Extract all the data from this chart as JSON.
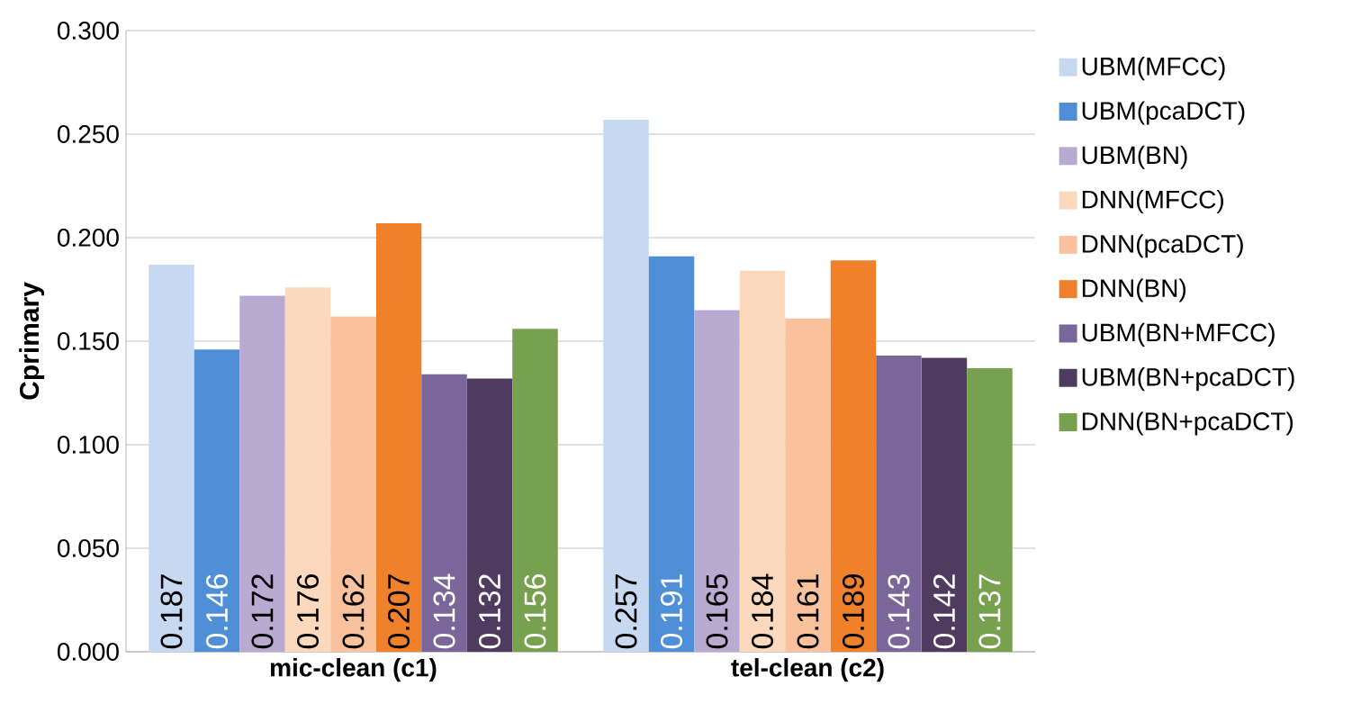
{
  "chart_data": {
    "type": "bar",
    "ylabel": "Cprimary",
    "categories": [
      "mic-clean (c1)",
      "tel-clean (c2)"
    ],
    "series": [
      {
        "name": "UBM(MFCC)",
        "color": "#c6d9f0",
        "values": [
          0.187,
          0.257
        ]
      },
      {
        "name": "UBM(pcaDCT)",
        "color": "#4f8fd8",
        "values": [
          0.146,
          0.191
        ]
      },
      {
        "name": "UBM(BN)",
        "color": "#b9aad2",
        "values": [
          0.172,
          0.165
        ]
      },
      {
        "name": "DNN(MFCC)",
        "color": "#fcd8bc",
        "values": [
          0.176,
          0.184
        ]
      },
      {
        "name": "DNN(pcaDCT)",
        "color": "#f9c19c",
        "values": [
          0.162,
          0.161
        ]
      },
      {
        "name": "DNN(BN)",
        "color": "#f0802a",
        "values": [
          0.207,
          0.189
        ]
      },
      {
        "name": "UBM(BN+MFCC)",
        "color": "#7b6699",
        "values": [
          0.134,
          0.143
        ]
      },
      {
        "name": "UBM(BN+pcaDCT)",
        "color": "#4f3b5f",
        "values": [
          0.132,
          0.142
        ]
      },
      {
        "name": "DNN(BN+pcaDCT)",
        "color": "#78a14f",
        "values": [
          0.156,
          0.137
        ]
      }
    ],
    "ylim": [
      0,
      0.3
    ],
    "yticks": [
      {
        "value": 0,
        "label": "0.000"
      },
      {
        "value": 0.05,
        "label": "0.050"
      },
      {
        "value": 0.1,
        "label": "0.100"
      },
      {
        "value": 0.15,
        "label": "0.150"
      },
      {
        "value": 0.2,
        "label": "0.200"
      },
      {
        "value": 0.25,
        "label": "0.250"
      },
      {
        "value": 0.3,
        "label": "0.300"
      }
    ],
    "grid": "y",
    "legend": "right",
    "data_labels": true
  }
}
